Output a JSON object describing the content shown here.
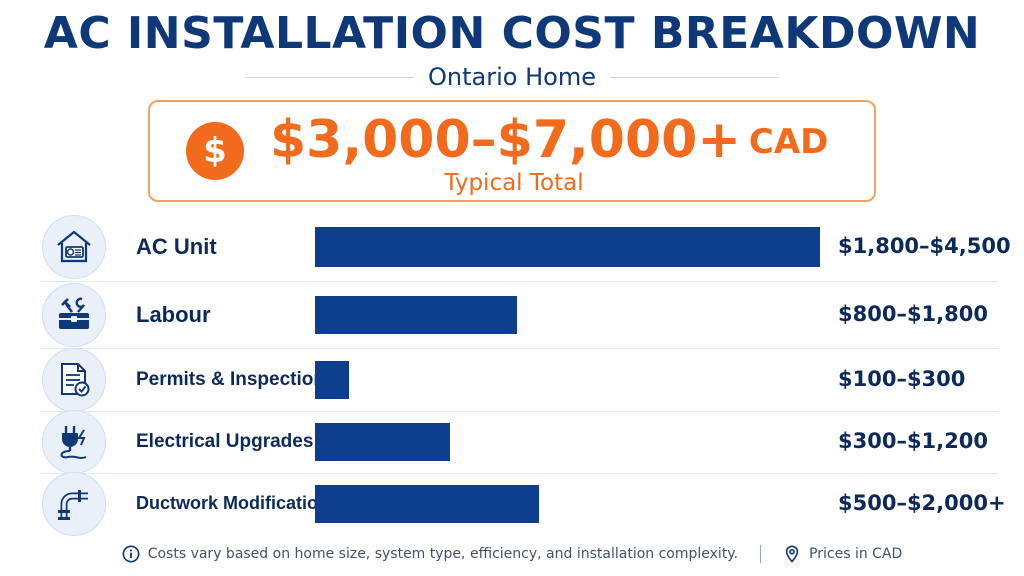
{
  "header": {
    "title": "AC INSTALLATION COST BREAKDOWN",
    "subtitle": "Ontario Home"
  },
  "total": {
    "icon": "dollar-icon",
    "symbol": "$",
    "value": "$3,000–$7,000+",
    "currency": "CAD",
    "label": "Typical Total"
  },
  "colors": {
    "accent": "#f26a1b",
    "bar": "#0e3f8f",
    "text": "#0b2a5b"
  },
  "chart_data": {
    "type": "bar",
    "orientation": "horizontal",
    "categories": [
      "AC Unit",
      "Labour",
      "Permits & Inspection",
      "Electrical Upgrades",
      "Ductwork Modification"
    ],
    "icons": [
      "ac-unit-icon",
      "toolbox-icon",
      "permit-document-icon",
      "electrical-plug-icon",
      "ductwork-pipe-icon"
    ],
    "value_labels": [
      "$1,800–$4,500",
      "$800–$1,800",
      "$100–$300",
      "$300–$1,200",
      "$500–$2,000+"
    ],
    "values": [
      4500,
      1800,
      300,
      1200,
      2000
    ],
    "xlim": [
      0,
      4500
    ],
    "grid": false,
    "legend": false
  },
  "footer": {
    "note": "Costs vary based on home size, system type, efficiency, and installation complexity.",
    "currency_note": "Prices in CAD"
  }
}
